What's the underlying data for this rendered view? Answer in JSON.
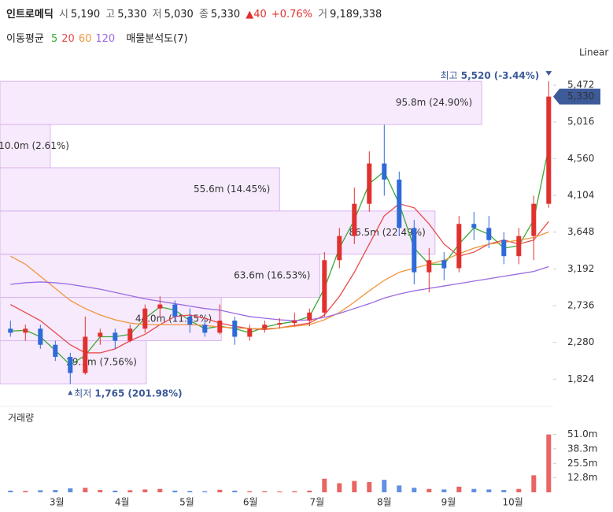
{
  "chart_data": {
    "type": "candlestick",
    "quote": {
      "name": "인트로메딕",
      "open_label": "시",
      "open": {
        "value": 5190,
        "label": "5,190"
      },
      "high_label": "고",
      "high": {
        "value": 5330,
        "label": "5,330"
      },
      "low_label": "저",
      "low": {
        "value": 5030,
        "label": "5,030"
      },
      "close_label": "종",
      "close": {
        "value": 5330,
        "label": "5,330"
      },
      "change": 40,
      "change_pct": {
        "value": 0.76,
        "label": "+0.76%"
      },
      "volume_label": "거",
      "volume": {
        "value": 9189338,
        "label": "9,189,338"
      }
    },
    "ma_title": "이동평균",
    "scale_label": "Linear",
    "xlim": [
      -0.7,
      36.3
    ],
    "xticks": [
      {
        "value": 3.1,
        "label": "3월"
      },
      {
        "value": 7.47,
        "label": "4월"
      },
      {
        "value": 11.8,
        "label": "5월"
      },
      {
        "value": 16.05,
        "label": "6월"
      },
      {
        "value": 20.5,
        "label": "7월"
      },
      {
        "value": 25,
        "label": "8월"
      },
      {
        "value": 29.3,
        "label": "9월"
      },
      {
        "value": 33.6,
        "label": "10월"
      }
    ],
    "ylim": [
      1700,
      5600
    ],
    "yticks": [
      {
        "value": 1824,
        "label": "1,824"
      },
      {
        "value": 2280,
        "label": "2,280"
      },
      {
        "value": 2736,
        "label": "2,736"
      },
      {
        "value": 3192,
        "label": "3,192"
      },
      {
        "value": 3648,
        "label": "3,648"
      },
      {
        "value": 4104,
        "label": "4,104"
      },
      {
        "value": 4560,
        "label": "4,560"
      },
      {
        "value": 5016,
        "label": "5,016"
      },
      {
        "value": 5472,
        "label": "5,472"
      }
    ],
    "up_color": "#e0312f",
    "down_color": "#2e6ad8",
    "open": [
      2450,
      2400,
      2450,
      2250,
      2100,
      1900,
      2350,
      2400,
      2300,
      2450,
      2700,
      2750,
      2600,
      2500,
      2400,
      2550,
      2350,
      2450,
      2500,
      2520,
      2550,
      2650,
      3300,
      3600,
      4000,
      4500,
      4300,
      3700,
      3150,
      3300,
      3200,
      3750,
      3700,
      3550,
      3350,
      3600,
      4000
    ],
    "high": [
      2550,
      2500,
      2500,
      2300,
      2150,
      2600,
      2450,
      2450,
      2500,
      2750,
      2850,
      2800,
      2700,
      2550,
      2750,
      2600,
      2500,
      2550,
      2580,
      2650,
      2700,
      3400,
      3700,
      4200,
      4650,
      4980,
      4400,
      3800,
      3450,
      3400,
      3850,
      3900,
      3850,
      3650,
      3700,
      4100,
      5520
    ],
    "low": [
      2350,
      2300,
      2200,
      2050,
      1765,
      1880,
      2250,
      2200,
      2280,
      2400,
      2600,
      2550,
      2400,
      2350,
      2380,
      2250,
      2300,
      2400,
      2450,
      2480,
      2480,
      2600,
      3200,
      3500,
      3900,
      4100,
      3600,
      3000,
      2900,
      3050,
      3150,
      3550,
      3450,
      3250,
      3250,
      3300,
      3950
    ],
    "close": [
      2400,
      2450,
      2250,
      2100,
      1900,
      2350,
      2400,
      2300,
      2450,
      2700,
      2750,
      2600,
      2500,
      2400,
      2550,
      2350,
      2450,
      2500,
      2520,
      2550,
      2650,
      3300,
      3600,
      4000,
      4500,
      4300,
      3700,
      3150,
      3300,
      3200,
      3750,
      3700,
      3550,
      3350,
      3600,
      4000,
      5330
    ],
    "series": [
      {
        "name": "5",
        "color": "#3aa835",
        "values": [
          2420,
          2430,
          2350,
          2180,
          2000,
          2120,
          2350,
          2350,
          2380,
          2580,
          2720,
          2680,
          2550,
          2450,
          2480,
          2450,
          2400,
          2470,
          2510,
          2540,
          2600,
          2950,
          3450,
          3800,
          4250,
          4400,
          4000,
          3450,
          3250,
          3250,
          3500,
          3700,
          3620,
          3450,
          3480,
          3800,
          4700
        ]
      },
      {
        "name": "20",
        "color": "#e84a4a",
        "values": [
          2750,
          2650,
          2550,
          2400,
          2250,
          2150,
          2150,
          2200,
          2300,
          2380,
          2500,
          2600,
          2620,
          2580,
          2520,
          2480,
          2450,
          2440,
          2460,
          2490,
          2520,
          2620,
          2850,
          3150,
          3500,
          3850,
          4000,
          3950,
          3750,
          3500,
          3350,
          3400,
          3500,
          3550,
          3500,
          3550,
          3780
        ]
      },
      {
        "name": "60",
        "color": "#f0963c",
        "values": [
          3350,
          3250,
          3100,
          2950,
          2800,
          2700,
          2620,
          2560,
          2520,
          2500,
          2500,
          2500,
          2500,
          2490,
          2470,
          2460,
          2450,
          2450,
          2460,
          2480,
          2500,
          2560,
          2650,
          2780,
          2920,
          3050,
          3150,
          3200,
          3250,
          3300,
          3380,
          3450,
          3500,
          3520,
          3550,
          3580,
          3650
        ]
      },
      {
        "name": "120",
        "color": "#9b6ae0",
        "values": [
          3000,
          3020,
          3030,
          3020,
          3000,
          2970,
          2940,
          2900,
          2860,
          2820,
          2790,
          2760,
          2730,
          2700,
          2680,
          2640,
          2600,
          2580,
          2560,
          2550,
          2560,
          2590,
          2640,
          2700,
          2760,
          2830,
          2880,
          2920,
          2950,
          2980,
          3010,
          3040,
          3070,
          3100,
          3130,
          3160,
          3220
        ]
      }
    ],
    "last": {
      "value": 5330,
      "label": "5,330"
    },
    "max_label": "최고",
    "max": {
      "value": 5520,
      "label": "5,520"
    },
    "max_change": "(-3.44%)",
    "min_label": "최저",
    "min": {
      "value": 1765,
      "label": "1,765"
    },
    "min_change": "(201.98%)",
    "profile": {
      "name": "매물분석도(7)",
      "bins": [
        1765,
        2301,
        2838,
        3374,
        3910,
        4447,
        4983,
        5520
      ],
      "xlim": [
        0,
        110
      ],
      "values": [
        29.1,
        44.0,
        63.6,
        86.5,
        55.6,
        10.0,
        95.8
      ],
      "percents": [
        7.56,
        11.45,
        16.53,
        22.49,
        14.45,
        2.61,
        24.9
      ],
      "value_labels": [
        "29.1m (7.56%)",
        "44.0m (11.45%)",
        "63.6m (16.53%)",
        "86.5m (22.49%)",
        "55.6m (14.45%)",
        "10.0m (2.61%)",
        "95.8m (24.90%)"
      ]
    },
    "volume": {
      "title": "거래량",
      "ylim": [
        0,
        55
      ],
      "yticks": [
        {
          "value": 12.8,
          "label": "12.8m"
        },
        {
          "value": 25.5,
          "label": "25.5m"
        },
        {
          "value": 38.3,
          "label": "38.3m"
        },
        {
          "value": 51.0,
          "label": "51.0m"
        }
      ],
      "values": [
        1.5,
        1.2,
        1.8,
        2.0,
        3.5,
        4.0,
        2.0,
        1.5,
        1.8,
        2.5,
        3.0,
        1.5,
        1.2,
        1.0,
        2.2,
        1.5,
        1.0,
        1.0,
        0.8,
        1.0,
        1.5,
        12.0,
        8.0,
        10.0,
        9.0,
        11.0,
        6.0,
        4.0,
        3.0,
        2.5,
        5.0,
        3.0,
        2.5,
        2.0,
        3.0,
        15.0,
        51.0
      ]
    }
  }
}
